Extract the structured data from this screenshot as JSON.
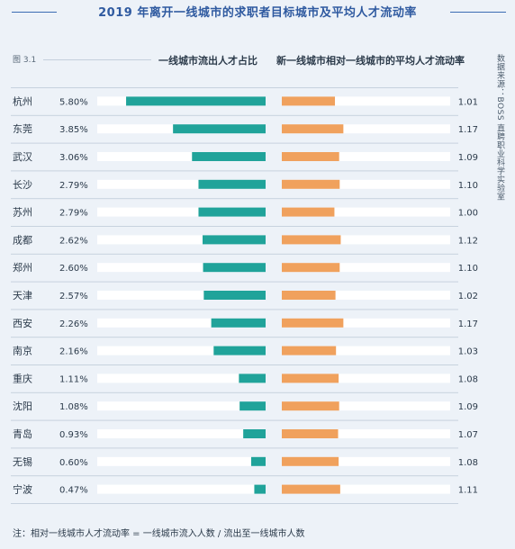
{
  "title": "2019 年离开一线城市的求职者目标城市及平均人才流动率",
  "figure_label": "图 3.1",
  "source_note": "数据来源：BOSS 直聘职业科学实验室",
  "footnote": "注：相对一线城市人才流动率 = 一线城市流入人数 / 流出至一线城市人数",
  "colors": {
    "outflow": "#20a39a",
    "flow_rate": "#f0a15d",
    "track": "#ffffff",
    "title": "#2f5aa0"
  },
  "chart_data": [
    {
      "type": "bar",
      "orientation": "horizontal",
      "direction": "right-to-left",
      "title": "一线城市流出人才占比",
      "categories": [
        "杭州",
        "东莞",
        "武汉",
        "长沙",
        "苏州",
        "成都",
        "郑州",
        "天津",
        "西安",
        "南京",
        "重庆",
        "沈阳",
        "青岛",
        "无锡",
        "宁波"
      ],
      "value_labels": [
        "5.80%",
        "3.85%",
        "3.06%",
        "2.79%",
        "2.79%",
        "2.62%",
        "2.60%",
        "2.57%",
        "2.26%",
        "2.16%",
        "1.11%",
        "1.08%",
        "0.93%",
        "0.60%",
        "0.47%"
      ],
      "values": [
        5.8,
        3.85,
        3.06,
        2.79,
        2.79,
        2.62,
        2.6,
        2.57,
        2.26,
        2.16,
        1.11,
        1.08,
        0.93,
        0.6,
        0.47
      ],
      "xlim": [
        0,
        7.0
      ],
      "unit": "%"
    },
    {
      "type": "bar",
      "orientation": "horizontal",
      "direction": "left-to-right",
      "title": "新一线城市相对一线城市的平均人才流动率",
      "categories": [
        "杭州",
        "东莞",
        "武汉",
        "长沙",
        "苏州",
        "成都",
        "郑州",
        "天津",
        "西安",
        "南京",
        "重庆",
        "沈阳",
        "青岛",
        "无锡",
        "宁波"
      ],
      "value_labels": [
        "1.01",
        "1.17",
        "1.09",
        "1.10",
        "1.00",
        "1.12",
        "1.10",
        "1.02",
        "1.17",
        "1.03",
        "1.08",
        "1.09",
        "1.07",
        "1.08",
        "1.11"
      ],
      "values": [
        1.01,
        1.17,
        1.09,
        1.1,
        1.0,
        1.12,
        1.1,
        1.02,
        1.17,
        1.03,
        1.08,
        1.09,
        1.07,
        1.08,
        1.11
      ],
      "xlim": [
        0,
        3.2
      ]
    }
  ]
}
